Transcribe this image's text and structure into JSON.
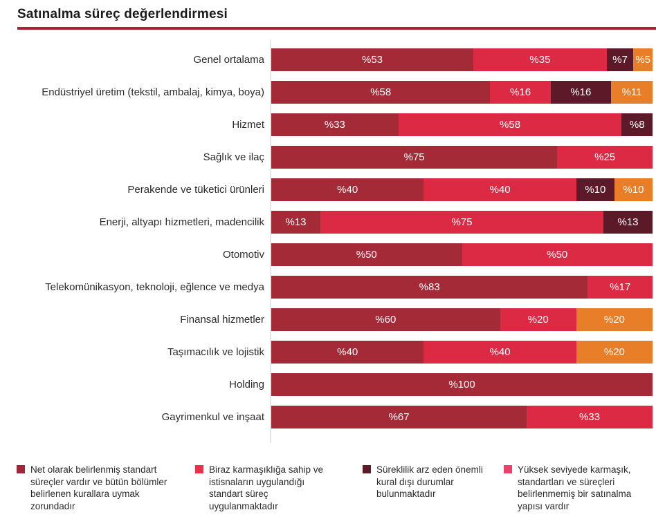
{
  "title": "Satınalma süreç değerlendirmesi",
  "accent_underline_color": "#AC2036",
  "chart_data": {
    "type": "bar",
    "orientation": "horizontal-stacked",
    "unit": "percent",
    "xlim": [
      0,
      100
    ],
    "grid": false,
    "legend_position": "bottom",
    "series_colors": [
      "#A42A38",
      "#DD2A44",
      "#5C1A28",
      "#E87E27"
    ],
    "series_names": [
      "Net olarak belirlenmiş standart süreçler vardır ve bütün bölümler belirlenen kurallara uymak zorundadır",
      "Biraz karmaşıklığa sahip ve istisnaların uygulandığı standart süreç uygulanmaktadır",
      "Süreklilik arz eden önemli kural dışı durumlar bulunmaktadır",
      "Yüksek seviyede karmaşık, standartları ve süreçleri belirlenmemiş bir satınalma yapısı vardır"
    ],
    "rows": [
      {
        "label": "Genel ortalama",
        "segments": [
          {
            "series": 0,
            "value": 53,
            "text": "%53"
          },
          {
            "series": 1,
            "value": 35,
            "text": "%35"
          },
          {
            "series": 2,
            "value": 7,
            "text": "%7"
          },
          {
            "series": 3,
            "value": 5,
            "text": "%5"
          }
        ]
      },
      {
        "label": "Endüstriyel üretim (tekstil, ambalaj, kimya, boya)",
        "segments": [
          {
            "series": 0,
            "value": 58,
            "text": "%58"
          },
          {
            "series": 1,
            "value": 16,
            "text": "%16"
          },
          {
            "series": 2,
            "value": 16,
            "text": "%16"
          },
          {
            "series": 3,
            "value": 11,
            "text": "%11"
          }
        ]
      },
      {
        "label": "Hizmet",
        "segments": [
          {
            "series": 0,
            "value": 33,
            "text": "%33"
          },
          {
            "series": 1,
            "value": 58,
            "text": "%58"
          },
          {
            "series": 2,
            "value": 8,
            "text": "%8"
          }
        ]
      },
      {
        "label": "Sağlık ve ilaç",
        "segments": [
          {
            "series": 0,
            "value": 75,
            "text": "%75"
          },
          {
            "series": 1,
            "value": 25,
            "text": "%25"
          }
        ]
      },
      {
        "label": "Perakende ve tüketici ürünleri",
        "segments": [
          {
            "series": 0,
            "value": 40,
            "text": "%40"
          },
          {
            "series": 1,
            "value": 40,
            "text": "%40"
          },
          {
            "series": 2,
            "value": 10,
            "text": "%10"
          },
          {
            "series": 3,
            "value": 10,
            "text": "%10"
          }
        ]
      },
      {
        "label": "Enerji, altyapı hizmetleri, madencilik",
        "segments": [
          {
            "series": 0,
            "value": 13,
            "text": "%13"
          },
          {
            "series": 1,
            "value": 75,
            "text": "%75"
          },
          {
            "series": 2,
            "value": 13,
            "text": "%13"
          }
        ]
      },
      {
        "label": "Otomotiv",
        "segments": [
          {
            "series": 0,
            "value": 50,
            "text": "%50"
          },
          {
            "series": 1,
            "value": 50,
            "text": "%50"
          }
        ]
      },
      {
        "label": "Telekomünikasyon, teknoloji, eğlence ve medya",
        "segments": [
          {
            "series": 0,
            "value": 83,
            "text": "%83"
          },
          {
            "series": 1,
            "value": 17,
            "text": "%17"
          }
        ]
      },
      {
        "label": "Finansal hizmetler",
        "segments": [
          {
            "series": 0,
            "value": 60,
            "text": "%60"
          },
          {
            "series": 1,
            "value": 20,
            "text": "%20"
          },
          {
            "series": 3,
            "value": 20,
            "text": "%20"
          }
        ]
      },
      {
        "label": "Taşımacılık ve lojistik",
        "segments": [
          {
            "series": 0,
            "value": 40,
            "text": "%40"
          },
          {
            "series": 1,
            "value": 40,
            "text": "%40"
          },
          {
            "series": 3,
            "value": 20,
            "text": "%20"
          }
        ]
      },
      {
        "label": "Holding",
        "segments": [
          {
            "series": 0,
            "value": 100,
            "text": "%100"
          }
        ]
      },
      {
        "label": "Gayrimenkul ve inşaat",
        "segments": [
          {
            "series": 0,
            "value": 67,
            "text": "%67"
          },
          {
            "series": 1,
            "value": 33,
            "text": "%33"
          }
        ]
      }
    ],
    "legend": [
      {
        "color": "#A32638",
        "text": "Net olarak belirlenmiş standart süreçler vardır ve bütün bölümler belirlenen kurallara uymak zorundadır"
      },
      {
        "color": "#E8334A",
        "text": "Biraz karmaşıklığa sahip ve istisnaların uygulandığı standart süreç uygulanmaktadır"
      },
      {
        "color": "#5E1A28",
        "text": "Süreklilik arz eden önemli kural dışı durumlar bulunmaktadır"
      },
      {
        "color": "#E8436B",
        "text": "Yüksek seviyede karmaşık, standartları ve süreçleri belirlenmemiş bir satınalma yapısı vardır"
      }
    ]
  }
}
